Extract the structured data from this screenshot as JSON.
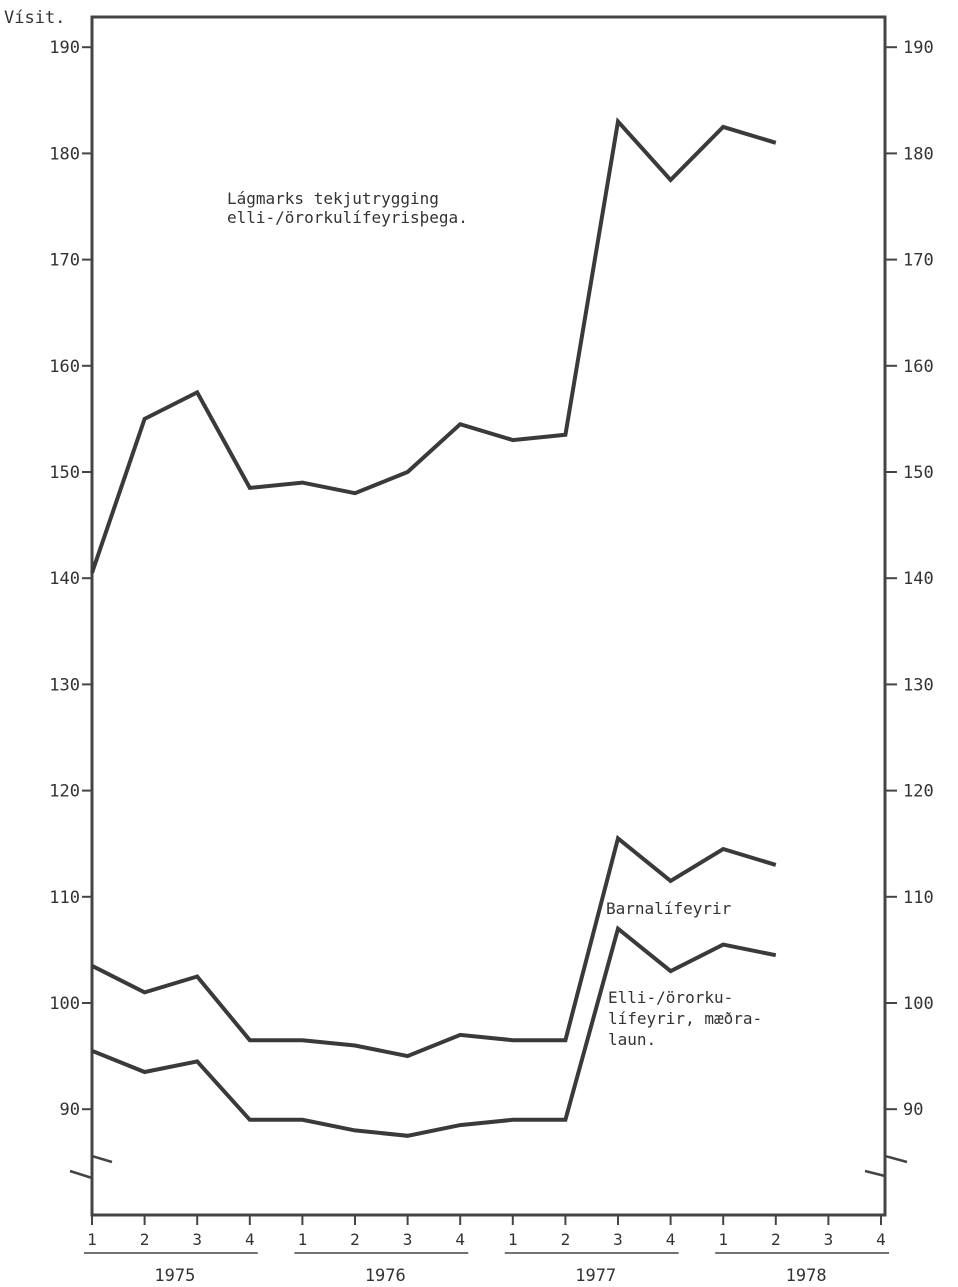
{
  "chart_data": {
    "type": "line",
    "ylabel": "Vísit.",
    "ylim": [
      80,
      193
    ],
    "y_ticks": [
      90,
      100,
      110,
      120,
      130,
      140,
      150,
      160,
      170,
      180,
      190
    ],
    "y_axis_break": true,
    "grid": false,
    "right_axis": true,
    "quarters": [
      {
        "year": "1975",
        "q": "1"
      },
      {
        "year": "1975",
        "q": "2"
      },
      {
        "year": "1975",
        "q": "3"
      },
      {
        "year": "1975",
        "q": "4"
      },
      {
        "year": "1976",
        "q": "1"
      },
      {
        "year": "1976",
        "q": "2"
      },
      {
        "year": "1976",
        "q": "3"
      },
      {
        "year": "1976",
        "q": "4"
      },
      {
        "year": "1977",
        "q": "1"
      },
      {
        "year": "1977",
        "q": "2"
      },
      {
        "year": "1977",
        "q": "3"
      },
      {
        "year": "1977",
        "q": "4"
      },
      {
        "year": "1978",
        "q": "1"
      },
      {
        "year": "1978",
        "q": "2"
      },
      {
        "year": "1978",
        "q": "3"
      },
      {
        "year": "1978",
        "q": "4"
      }
    ],
    "years": [
      "1975",
      "1976",
      "1977",
      "1978"
    ],
    "series": [
      {
        "name": "Lágmarks tekjutrygging elli-/örorkulífeyrisþega.",
        "label_lines": [
          "Lágmarks tekjutrygging",
          "elli-/örorkulífeyrisþega."
        ],
        "values": [
          140.5,
          155,
          157.5,
          148.5,
          149,
          148,
          150,
          154.5,
          153,
          153.5,
          183,
          177.5,
          182.5,
          181,
          null,
          null
        ]
      },
      {
        "name": "Barnalífeyrir",
        "label_lines": [
          "Barnalífeyrir"
        ],
        "values": [
          103.5,
          101,
          102.5,
          96.5,
          96.5,
          96,
          95,
          97,
          96.5,
          96.5,
          115.5,
          111.5,
          114.5,
          113,
          null,
          null
        ]
      },
      {
        "name": "Elli-/örorkulífeyrir, mæðralaun.",
        "label_lines": [
          "Elli-/örorku-",
          "lífeyrir, mæðra-",
          "laun."
        ],
        "values": [
          95.5,
          93.5,
          94.5,
          89,
          89,
          88,
          87.5,
          88.5,
          89,
          89,
          107,
          103,
          105.5,
          104.5,
          null,
          null
        ]
      }
    ],
    "colors": {
      "line": "#3a3a3a",
      "axis": "#444444",
      "text": "#333333",
      "background": "#ffffff"
    }
  }
}
